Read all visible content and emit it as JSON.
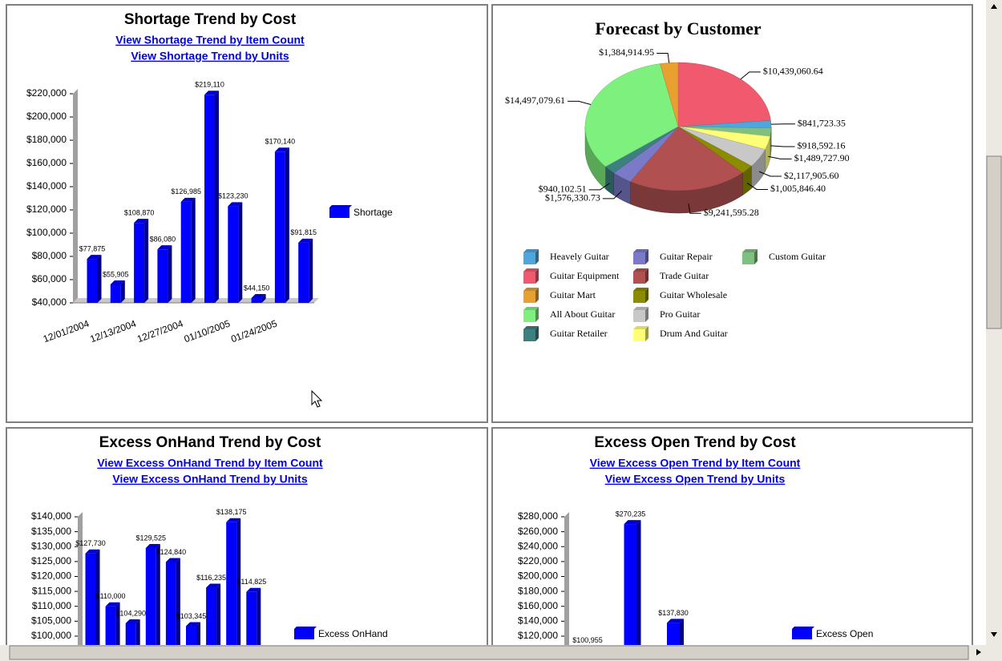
{
  "chart_data": [
    {
      "type": "bar",
      "title": "Shortage Trend by Cost",
      "links": [
        "View Shortage Trend by Item Count",
        "View Shortage Trend by Units"
      ],
      "categories": [
        "12/01/2004",
        null,
        "12/13/2004",
        null,
        "12/27/2004",
        null,
        "01/10/2005",
        null,
        "01/24/2005",
        null
      ],
      "series": [
        {
          "name": "Shortage",
          "color": "#0000ff",
          "values": [
            77875,
            55905,
            108870,
            86080,
            126985,
            219110,
            123230,
            44150,
            170140,
            91815
          ],
          "value_labels": [
            "$77,875",
            "$55,905",
            "$108,870",
            "$86,080",
            "$126,985",
            "$219,110",
            "$123,230",
            "$44,150",
            "$170,140",
            "$91,815"
          ]
        }
      ],
      "ylim": [
        40000,
        220000
      ],
      "yticks": [
        {
          "value": 40000,
          "label": "$40,000"
        },
        {
          "value": 60000,
          "label": "$60,000"
        },
        {
          "value": 80000,
          "label": "$80,000"
        },
        {
          "value": 100000,
          "label": "$100,000"
        },
        {
          "value": 120000,
          "label": "$120,000"
        },
        {
          "value": 140000,
          "label": "$140,000"
        },
        {
          "value": 160000,
          "label": "$160,000"
        },
        {
          "value": 180000,
          "label": "$180,000"
        },
        {
          "value": 200000,
          "label": "$200,000"
        },
        {
          "value": 220000,
          "label": "$220,000"
        }
      ]
    },
    {
      "type": "pie",
      "title": "Forecast by Customer",
      "categories": [
        "Heavely Guitar",
        "Guitar Equipment",
        "Guitar Mart",
        "All About Guitar",
        "Guitar Retailer",
        "Guitar Repair",
        "Trade Guitar",
        "Guitar Wholesale",
        "Pro Guitar",
        "Drum And Guitar",
        "Custom Guitar"
      ],
      "colors": [
        "#4ea6dc",
        "#f0596e",
        "#e8a030",
        "#7ef07e",
        "#3d8080",
        "#7a7ac8",
        "#b05050",
        "#8c8c00",
        "#c8c8c8",
        "#ffff78",
        "#7fbf7f"
      ],
      "values": [
        841723.35,
        10439060.64,
        1384914.95,
        14497079.61,
        940102.51,
        1576330.73,
        9241595.28,
        1005846.4,
        2117905.6,
        1489727.9,
        918592.16
      ],
      "value_labels": [
        "$841,723.35",
        "$10,439,060.64",
        "$1,384,914.95",
        "$14,497,079.61",
        "$940,102.51",
        "$1,576,330.73",
        "$9,241,595.28",
        "$1,005,846.40",
        "$2,117,905.60",
        "$1,489,727.90",
        "$918,592.16"
      ]
    },
    {
      "type": "bar",
      "title": "Excess OnHand Trend by Cost",
      "links": [
        "View Excess OnHand Trend by Item Count",
        "View Excess OnHand Trend by Units"
      ],
      "series": [
        {
          "name": "Excess OnHand",
          "color": "#0000ff",
          "values": [
            127730,
            110000,
            104290,
            129525,
            124840,
            103345,
            116235,
            138175,
            114825
          ],
          "value_labels": [
            "$127,730",
            "$110,000",
            "$104,290",
            "$129,525",
            "$124,840",
            "$103,345",
            "$116,235",
            "$138,175",
            "$114,825"
          ]
        }
      ],
      "ylim": [
        95000,
        140000
      ],
      "yticks": [
        {
          "value": 100000,
          "label": "$100,000"
        },
        {
          "value": 105000,
          "label": "$105,000"
        },
        {
          "value": 110000,
          "label": "$110,000"
        },
        {
          "value": 115000,
          "label": "$115,000"
        },
        {
          "value": 120000,
          "label": "$120,000"
        },
        {
          "value": 125000,
          "label": "$125,000"
        },
        {
          "value": 130000,
          "label": "$130,000"
        },
        {
          "value": 135000,
          "label": "$135,000"
        },
        {
          "value": 140000,
          "label": "$140,000"
        }
      ]
    },
    {
      "type": "bar",
      "title": "Excess Open Trend by Cost",
      "links": [
        "View Excess Open Trend by Item Count",
        "View Excess Open Trend by Units"
      ],
      "series": [
        {
          "name": "Excess Open",
          "color": "#0000ff",
          "values": [
            100955,
            270235,
            137830
          ],
          "value_labels": [
            "$100,955",
            "$270,235",
            "$137,830"
          ]
        }
      ],
      "ylim": [
        100000,
        280000
      ],
      "yticks": [
        {
          "value": 120000,
          "label": "$120,000"
        },
        {
          "value": 140000,
          "label": "$140,000"
        },
        {
          "value": 160000,
          "label": "$160,000"
        },
        {
          "value": 180000,
          "label": "$180,000"
        },
        {
          "value": 200000,
          "label": "$200,000"
        },
        {
          "value": 220000,
          "label": "$220,000"
        },
        {
          "value": 240000,
          "label": "$240,000"
        },
        {
          "value": 260000,
          "label": "$260,000"
        },
        {
          "value": 280000,
          "label": "$280,000"
        }
      ]
    }
  ]
}
